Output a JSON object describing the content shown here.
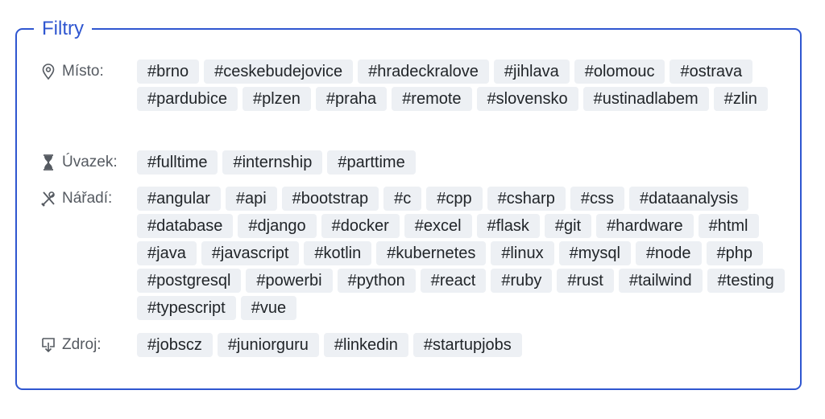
{
  "filters": {
    "title": "Filtry",
    "sections": [
      {
        "key": "place",
        "icon": "map-pin-icon",
        "label": "Místo:",
        "tags": [
          "#brno",
          "#ceskebudejovice",
          "#hradeckralove",
          "#jihlava",
          "#olomouc",
          "#ostrava",
          "#pardubice",
          "#plzen",
          "#praha",
          "#remote",
          "#slovensko",
          "#ustinadlabem",
          "#zlin"
        ]
      },
      {
        "key": "employment",
        "icon": "hourglass-icon",
        "label": "Úvazek:",
        "tags": [
          "#fulltime",
          "#internship",
          "#parttime"
        ]
      },
      {
        "key": "tools",
        "icon": "tools-icon",
        "label": "Nářadí:",
        "tags": [
          "#angular",
          "#api",
          "#bootstrap",
          "#c",
          "#cpp",
          "#csharp",
          "#css",
          "#dataanalysis",
          "#database",
          "#django",
          "#docker",
          "#excel",
          "#flask",
          "#git",
          "#hardware",
          "#html",
          "#java",
          "#javascript",
          "#kotlin",
          "#kubernetes",
          "#linux",
          "#mysql",
          "#node",
          "#php",
          "#postgresql",
          "#powerbi",
          "#python",
          "#react",
          "#ruby",
          "#rust",
          "#tailwind",
          "#testing",
          "#typescript",
          "#vue"
        ]
      },
      {
        "key": "source",
        "icon": "download-box-icon",
        "label": "Zdroj:",
        "tags": [
          "#jobscz",
          "#juniorguru",
          "#linkedin",
          "#startupjobs"
        ]
      }
    ]
  },
  "colors": {
    "accent": "#2f56d0",
    "tag_bg": "#edf0f4"
  }
}
